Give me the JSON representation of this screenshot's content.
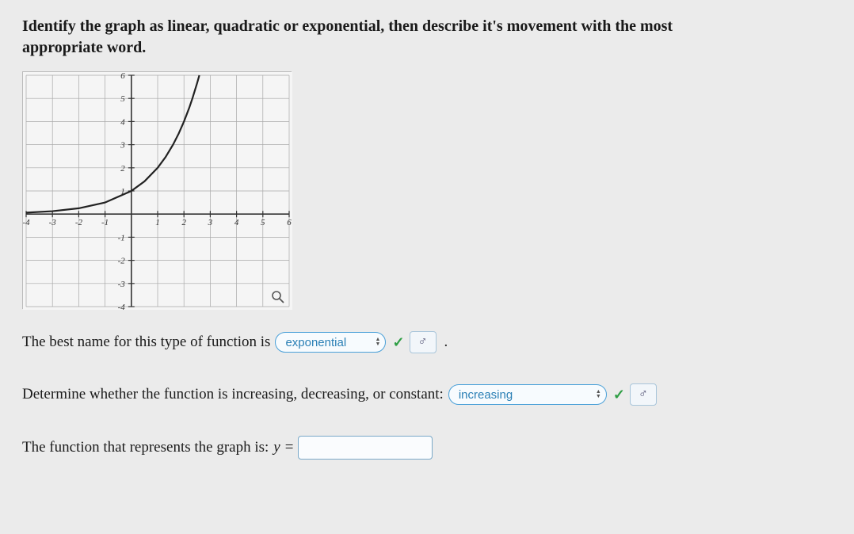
{
  "question": {
    "line1": "Identify the graph as linear, quadratic or exponential, then describe it's movement with the most",
    "line2": "appropriate word."
  },
  "graph": {
    "type": "line",
    "xlim": [
      -4,
      6
    ],
    "ylim": [
      -4,
      6
    ],
    "xtick_step": 1,
    "ytick_step": 1,
    "x_ticks": [
      -4,
      -3,
      -2,
      -1,
      1,
      2,
      3,
      4,
      5,
      6
    ],
    "y_ticks": [
      -4,
      -3,
      -2,
      -1,
      1,
      2,
      3,
      4,
      5,
      6
    ],
    "background_color": "#f5f5f5",
    "grid_color": "#a8a8a8",
    "axis_color": "#333333",
    "tick_font_size": 11,
    "curve_color": "#222222",
    "curve_width": 2.2,
    "curve_points": [
      [
        -4,
        0.0625
      ],
      [
        -3,
        0.125
      ],
      [
        -2,
        0.25
      ],
      [
        -1,
        0.5
      ],
      [
        0,
        1
      ],
      [
        0.5,
        1.414
      ],
      [
        1,
        2
      ],
      [
        1.3,
        2.462
      ],
      [
        1.585,
        3
      ],
      [
        1.8,
        3.48
      ],
      [
        2,
        4
      ],
      [
        2.2,
        4.59
      ],
      [
        2.322,
        5
      ],
      [
        2.5,
        5.66
      ],
      [
        2.585,
        6
      ]
    ]
  },
  "statements": {
    "s1_prefix": "The best name for this type of function is",
    "s1_answer": "exponential",
    "s2_prefix": "Determine whether the function is increasing, decreasing, or constant:",
    "s2_answer": "increasing",
    "s3_prefix": "The function that represents the graph is:",
    "s3_var": "y",
    "s3_eq": "="
  },
  "icons": {
    "check": "✓",
    "up": "▲",
    "down": "▼",
    "sigma": "♂"
  },
  "colors": {
    "pill_border": "#4aa0d8",
    "pill_text": "#2a7fb5",
    "check_green": "#2e9e44",
    "box_border": "#a8c5da"
  }
}
